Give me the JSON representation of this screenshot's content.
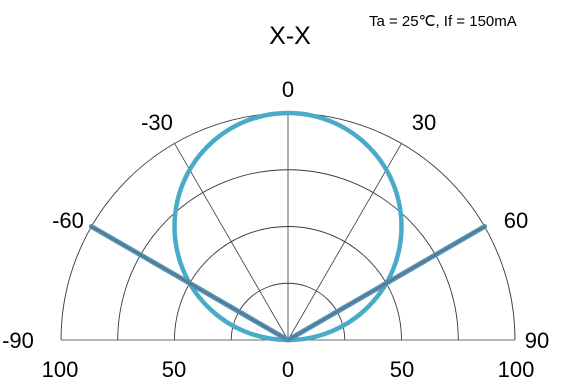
{
  "chart_data": {
    "type": "polar",
    "title": "X-X",
    "annotation": "Ta = 25℃, If = 150mA",
    "angle_ticks": [
      "-90",
      "-60",
      "-30",
      "0",
      "30",
      "60",
      "90"
    ],
    "angle_values": [
      -90,
      -60,
      -30,
      0,
      30,
      60,
      90
    ],
    "radial_ticks": [
      "100",
      "50",
      "0",
      "50",
      "100"
    ],
    "radial_values": [
      100,
      50,
      0,
      50,
      100
    ],
    "rlim": [
      0,
      100
    ],
    "thetalim": [
      -90,
      90
    ],
    "series": [
      {
        "color": "#4aabc8",
        "style": "circle",
        "points": [
          {
            "angle": -90,
            "value": 0
          },
          {
            "angle": -60,
            "value": 50
          },
          {
            "angle": -50,
            "value": 64
          },
          {
            "angle": -40,
            "value": 77
          },
          {
            "angle": -30,
            "value": 87
          },
          {
            "angle": -20,
            "value": 94
          },
          {
            "angle": -10,
            "value": 98
          },
          {
            "angle": 0,
            "value": 100
          },
          {
            "angle": 10,
            "value": 98
          },
          {
            "angle": 20,
            "value": 94
          },
          {
            "angle": 30,
            "value": 87
          },
          {
            "angle": 40,
            "value": 77
          },
          {
            "angle": 50,
            "value": 64
          },
          {
            "angle": 60,
            "value": 50
          },
          {
            "angle": 90,
            "value": 0
          }
        ]
      },
      {
        "color": "#5a8fb0",
        "style": "line",
        "points": [
          {
            "angle": -60,
            "value": 0
          },
          {
            "angle": -60,
            "value": 100
          }
        ]
      },
      {
        "color": "#5a8fb0",
        "style": "line",
        "points": [
          {
            "angle": 60,
            "value": 0
          },
          {
            "angle": 60,
            "value": 100
          }
        ]
      }
    ],
    "grid": true
  }
}
